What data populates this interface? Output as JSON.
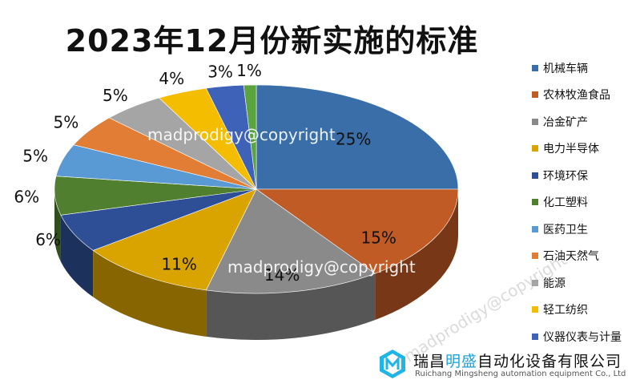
{
  "chart_data": {
    "type": "pie",
    "title": "2023年12月份新实施的标准",
    "categories": [
      "机械车辆",
      "农林牧渔食品",
      "冶金矿产",
      "电力半导体",
      "环境环保",
      "化工塑料",
      "医药卫生",
      "石油天然气",
      "能源",
      "轻工纺织",
      "仪器仪表与计量"
    ],
    "values": [
      25,
      15,
      14,
      11,
      6,
      6,
      5,
      5,
      5,
      4,
      3,
      1
    ],
    "slice_categories": [
      "机械车辆",
      "农林牧渔食品",
      "冶金矿产",
      "电力半导体",
      "环境环保",
      "化工塑料",
      "医药卫生",
      "石油天然气",
      "能源",
      "轻工纺织",
      "仪器仪表与计量",
      ""
    ],
    "labels": [
      "25%",
      "15%",
      "14%",
      "11%",
      "6%",
      "6%",
      "5%",
      "5%",
      "5%",
      "4%",
      "3%",
      "1%"
    ],
    "colors": [
      "#3a6ea8",
      "#c15b26",
      "#8a8a8a",
      "#d9a300",
      "#2e4f96",
      "#4f7f2f",
      "#5a9ad4",
      "#e17d35",
      "#a5a5a5",
      "#f4bd00",
      "#3d62b8",
      "#5aa33e"
    ],
    "legend_position": "right",
    "three_d": true
  },
  "watermarks": {
    "text1": "madprodigy@copyright",
    "text2": "madprodigy@copyright",
    "text3": "madprodigy@copyright"
  },
  "company": {
    "name_part1": "瑞昌",
    "name_highlight": "明盛",
    "name_part2": "自动化设备有限公司",
    "name_en": "Ruichang Mingsheng automation equipment Co., Ltd"
  }
}
